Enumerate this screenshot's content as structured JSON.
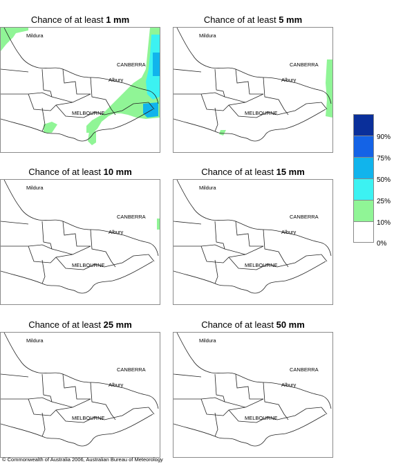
{
  "panels": [
    {
      "prefix": "Chance of at least ",
      "amount": "1 mm"
    },
    {
      "prefix": "Chance of at least ",
      "amount": "5 mm"
    },
    {
      "prefix": "Chance of at least ",
      "amount": "10 mm"
    },
    {
      "prefix": "Chance of at least ",
      "amount": "15 mm"
    },
    {
      "prefix": "Chance of at least ",
      "amount": "25 mm"
    },
    {
      "prefix": "Chance of at least ",
      "amount": "50 mm"
    }
  ],
  "places": {
    "mildura": "Mildura",
    "canberra": "CANBERRA",
    "albury": "Albury",
    "melbourne": "MELBOURNE"
  },
  "legend": {
    "labels": [
      "90%",
      "75%",
      "50%",
      "25%",
      "10%",
      "0%"
    ],
    "colors": [
      "#0a2f9a",
      "#1463e6",
      "#11b4ec",
      "#3cf2f2",
      "#90f596",
      "#ffffff"
    ]
  },
  "copyright": "© Commonwealth of Australia 2006, Australian Bureau of Meteorology"
}
